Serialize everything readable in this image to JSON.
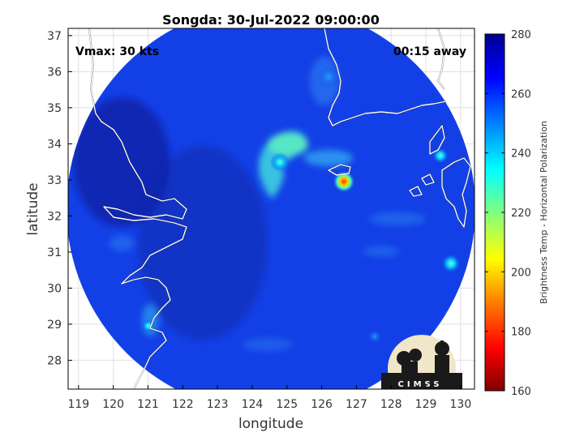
{
  "title": "Songda: 30-Jul-2022 09:00:00",
  "annotations": {
    "vmax": "Vmax: 30 kts",
    "offset": "00:15 away"
  },
  "axes": {
    "xlabel": "longitude",
    "ylabel": "latitude",
    "x_ticks": [
      "119",
      "120",
      "121",
      "122",
      "123",
      "124",
      "125",
      "126",
      "127",
      "128",
      "129",
      "130"
    ],
    "y_ticks": [
      "28",
      "29",
      "30",
      "31",
      "32",
      "33",
      "34",
      "35",
      "36",
      "37"
    ],
    "xlim": [
      118.7,
      130.4
    ],
    "ylim": [
      27.2,
      37.2
    ]
  },
  "colorbar": {
    "label": "Brightness Temp - Horizontal Polarization",
    "ticks": [
      "160",
      "180",
      "200",
      "220",
      "240",
      "260",
      "280"
    ],
    "range": [
      160,
      280
    ],
    "colors": [
      "#7f0000",
      "#ff0000",
      "#ff8000",
      "#ffff00",
      "#80ff80",
      "#00ffff",
      "#0080ff",
      "#0000ff",
      "#00008f"
    ]
  },
  "logo": {
    "text": "CIMSS",
    "background": "#f2e6c8"
  },
  "colors": {
    "background_field": "#1340e6",
    "outer_field": "#0b1e96",
    "coastline": "#ffffff"
  }
}
